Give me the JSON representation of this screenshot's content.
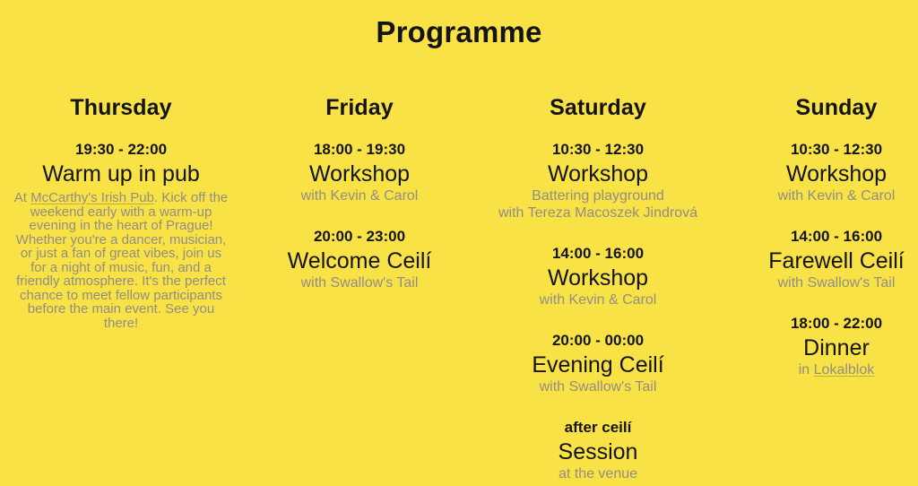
{
  "header": {
    "title": "Programme"
  },
  "colors": {
    "background": "#F9E246",
    "text": "#141414",
    "muted": "#908E85"
  },
  "days": [
    {
      "name": "Thursday",
      "events": [
        {
          "time": "19:30 - 22:00",
          "title": "Warm up in pub",
          "details_style": "paragraph",
          "details": [
            [
              {
                "text": "At "
              },
              {
                "text": "McCarthy's Irish Pub",
                "link": true
              },
              {
                "text": ". Kick off the weekend early with a warm-up evening in the heart of Prague! Whether you're a dancer, musician, or just a fan of great vibes, join us for a night of music, fun, and a friendly atmosphere. It's the perfect chance to meet fellow participants before the main event. See you there!"
              }
            ]
          ]
        }
      ]
    },
    {
      "name": "Friday",
      "events": [
        {
          "time": "18:00 - 19:30",
          "title": "Workshop",
          "details": [
            [
              {
                "text": "with Kevin & Carol"
              }
            ]
          ]
        },
        {
          "time": "20:00 - 23:00",
          "title": "Welcome Ceilí",
          "details": [
            [
              {
                "text": "with Swallow's Tail"
              }
            ]
          ]
        }
      ]
    },
    {
      "name": "Saturday",
      "events": [
        {
          "time": "10:30 - 12:30",
          "title": "Workshop",
          "details": [
            [
              {
                "text": "Battering playground"
              }
            ],
            [
              {
                "text": "with Tereza Macoszek Jindrová"
              }
            ]
          ]
        },
        {
          "time": "14:00 - 16:00",
          "title": "Workshop",
          "details": [
            [
              {
                "text": "with Kevin & Carol"
              }
            ]
          ]
        },
        {
          "time": "20:00 - 00:00",
          "title": "Evening Ceilí",
          "details": [
            [
              {
                "text": "with Swallow's Tail"
              }
            ]
          ]
        },
        {
          "time": "after ceilí",
          "title": "Session",
          "details": [
            [
              {
                "text": "at the venue"
              }
            ]
          ]
        }
      ]
    },
    {
      "name": "Sunday",
      "events": [
        {
          "time": "10:30 - 12:30",
          "title": "Workshop",
          "details": [
            [
              {
                "text": "with Kevin & Carol"
              }
            ]
          ]
        },
        {
          "time": "14:00 - 16:00",
          "title": "Farewell Ceilí",
          "details": [
            [
              {
                "text": "with Swallow's Tail"
              }
            ]
          ]
        },
        {
          "time": "18:00 - 22:00",
          "title": "Dinner",
          "details": [
            [
              {
                "text": "in "
              },
              {
                "text": "Lokalblok",
                "link": true
              }
            ]
          ]
        }
      ]
    }
  ]
}
